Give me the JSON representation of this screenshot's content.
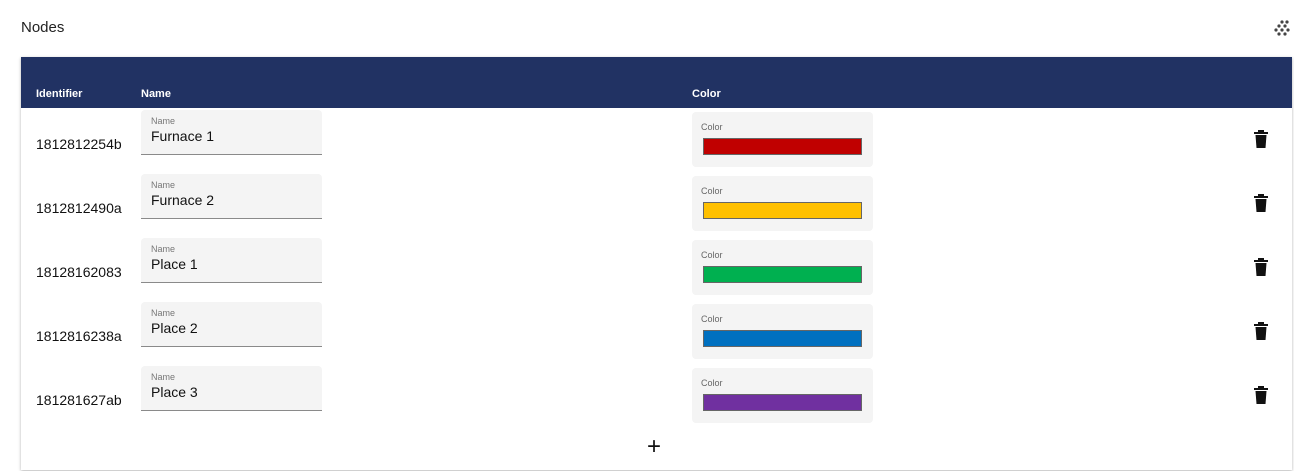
{
  "page": {
    "title": "Nodes",
    "menu_icon": "dots-grid-icon"
  },
  "table": {
    "columns": {
      "identifier": "Identifier",
      "name": "Name",
      "color": "Color"
    },
    "header_color": "#213263",
    "rows": [
      {
        "identifier": "1812812254b",
        "name_label": "Name",
        "name": "Furnace 1",
        "color_label": "Color",
        "color": "#c00000"
      },
      {
        "identifier": "1812812490a",
        "name_label": "Name",
        "name": "Furnace 2",
        "color_label": "Color",
        "color": "#ffc000"
      },
      {
        "identifier": "18128162083",
        "name_label": "Name",
        "name": "Place 1",
        "color_label": "Color",
        "color": "#00b050"
      },
      {
        "identifier": "1812816238a",
        "name_label": "Name",
        "name": "Place 2",
        "color_label": "Color",
        "color": "#0070c0"
      },
      {
        "identifier": "181281627ab",
        "name_label": "Name",
        "name": "Place 3",
        "color_label": "Color",
        "color": "#7030a0"
      }
    ],
    "add_label": "+"
  }
}
